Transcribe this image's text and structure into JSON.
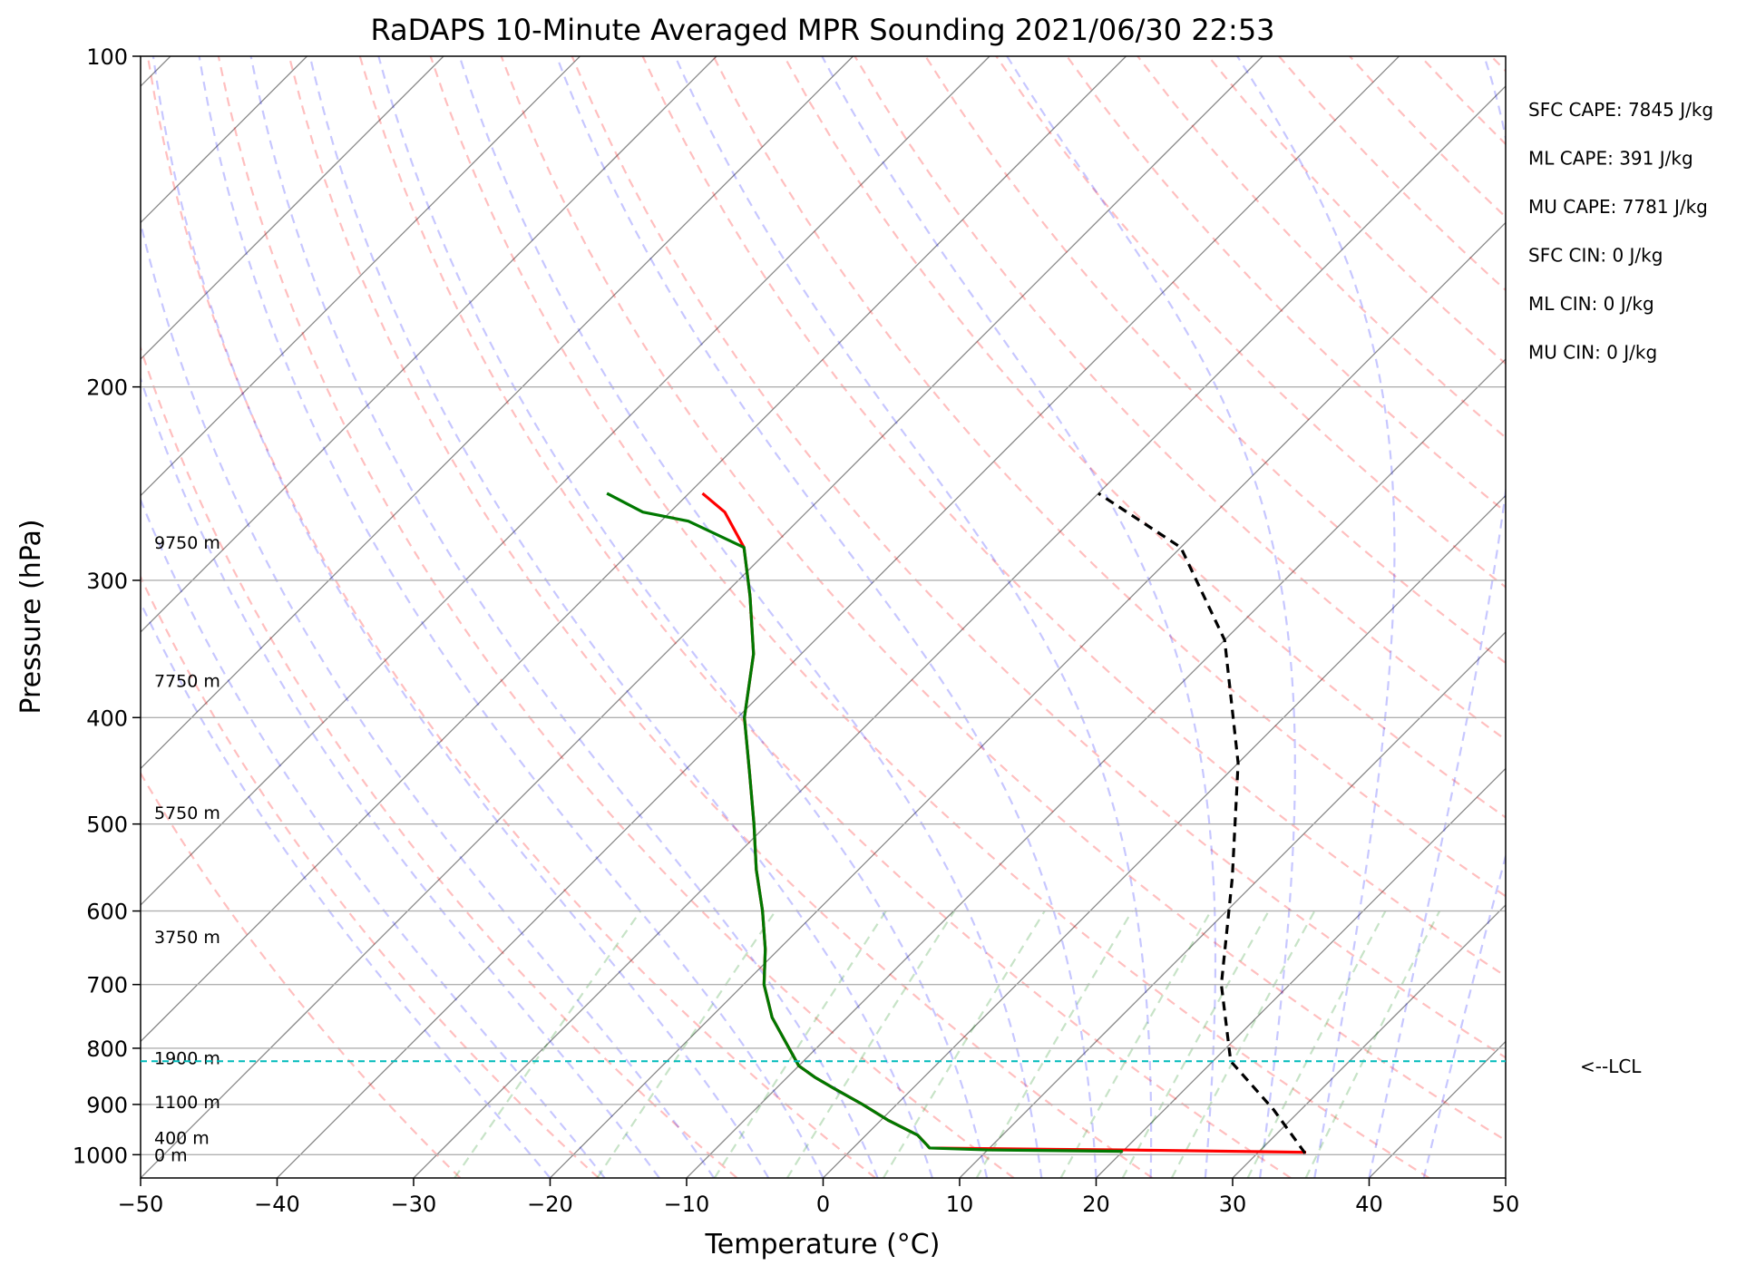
{
  "chart_data": {
    "type": "line",
    "title": "RaDAPS 10-Minute Averaged MPR Sounding 2021/06/30 22:53",
    "xlabel": "Temperature (°C)",
    "ylabel": "Pressure (hPa)",
    "xlim": [
      -50,
      50
    ],
    "ylim": [
      1050,
      100
    ],
    "y_scale": "log",
    "x_ticks": [
      -50,
      -40,
      -30,
      -20,
      -10,
      0,
      10,
      20,
      30,
      40,
      50
    ],
    "x_tick_labels": [
      "−50",
      "−40",
      "−30",
      "−20",
      "−10",
      "0",
      "10",
      "20",
      "30",
      "40",
      "50"
    ],
    "y_ticks": [
      100,
      200,
      300,
      400,
      500,
      600,
      700,
      800,
      900,
      1000
    ],
    "y_tick_labels": [
      "100",
      "200",
      "300",
      "400",
      "500",
      "600",
      "700",
      "800",
      "900",
      "1000"
    ],
    "grid": true,
    "skew": 45,
    "series": [
      {
        "color": "#ff0000",
        "points": [
          [
            33.5,
            995
          ],
          [
            20.0,
            990
          ],
          [
            15.0,
            989
          ],
          [
            5.6,
            986
          ],
          [
            5.2,
            980
          ],
          [
            3.8,
            960
          ],
          [
            0.5,
            930
          ],
          [
            -2.5,
            900
          ],
          [
            -5.8,
            870
          ],
          [
            -8.0,
            850
          ],
          [
            -10.0,
            830
          ],
          [
            -12.0,
            800
          ],
          [
            -15.5,
            750
          ],
          [
            -18.5,
            700
          ],
          [
            -21.0,
            650
          ],
          [
            -24.0,
            600
          ],
          [
            -27.5,
            550
          ],
          [
            -31.0,
            500
          ],
          [
            -35.0,
            450
          ],
          [
            -39.5,
            400
          ],
          [
            -43.5,
            350
          ],
          [
            -48.0,
            310
          ],
          [
            -52.0,
            280
          ],
          [
            -56.0,
            260
          ],
          [
            -59.0,
            250
          ]
        ]
      },
      {
        "color": "#007800",
        "points": [
          [
            20.0,
            993
          ],
          [
            10.0,
            990
          ],
          [
            5.6,
            986
          ],
          [
            5.2,
            980
          ],
          [
            3.8,
            960
          ],
          [
            0.5,
            930
          ],
          [
            -2.5,
            900
          ],
          [
            -5.8,
            870
          ],
          [
            -8.0,
            850
          ],
          [
            -10.0,
            830
          ],
          [
            -12.0,
            800
          ],
          [
            -15.5,
            750
          ],
          [
            -18.5,
            700
          ],
          [
            -21.0,
            650
          ],
          [
            -24.0,
            600
          ],
          [
            -27.5,
            550
          ],
          [
            -31.0,
            500
          ],
          [
            -35.0,
            450
          ],
          [
            -39.5,
            400
          ],
          [
            -43.5,
            350
          ],
          [
            -48.0,
            310
          ],
          [
            -52.0,
            280
          ],
          [
            -58.0,
            265
          ],
          [
            -62.0,
            260
          ],
          [
            -66.0,
            250
          ]
        ]
      },
      {
        "color": "#000000",
        "dashed": true,
        "points": [
          [
            33.5,
            997
          ],
          [
            28.0,
            910
          ],
          [
            21.3,
            822
          ],
          [
            15.0,
            700
          ],
          [
            8.0,
            560
          ],
          [
            0.0,
            440
          ],
          [
            -10.0,
            340
          ],
          [
            -20.0,
            280
          ],
          [
            -30.0,
            250
          ]
        ]
      }
    ],
    "annotations": {
      "height_labels": [
        {
          "text": "9750 m",
          "p": 277
        },
        {
          "text": "7750 m",
          "p": 370
        },
        {
          "text": "5750 m",
          "p": 488
        },
        {
          "text": "3750 m",
          "p": 633
        },
        {
          "text": "1900 m",
          "p": 816
        },
        {
          "text": "1100 m",
          "p": 895
        },
        {
          "text": "400 m",
          "p": 965
        },
        {
          "text": "0 m",
          "p": 1000
        }
      ],
      "lcl": {
        "text": "<--LCL",
        "p": 822,
        "color": "#00bbbb"
      },
      "stats": [
        "SFC CAPE: 7845 J/kg",
        "ML CAPE: 391 J/kg",
        "MU CAPE: 7781 J/kg",
        "SFC CIN: 0 J/kg",
        "ML CIN: 0 J/kg",
        "MU CIN: 0 J/kg"
      ]
    },
    "background_lines": {
      "dry_adiabats": {
        "color": "#ff0000",
        "dashed": true
      },
      "moist_adiabats": {
        "color": "#0000ff",
        "dashed": true
      },
      "mixing_ratio": {
        "color": "#008000",
        "dashed": true
      },
      "isotherms": {
        "color": "#888888"
      }
    }
  }
}
